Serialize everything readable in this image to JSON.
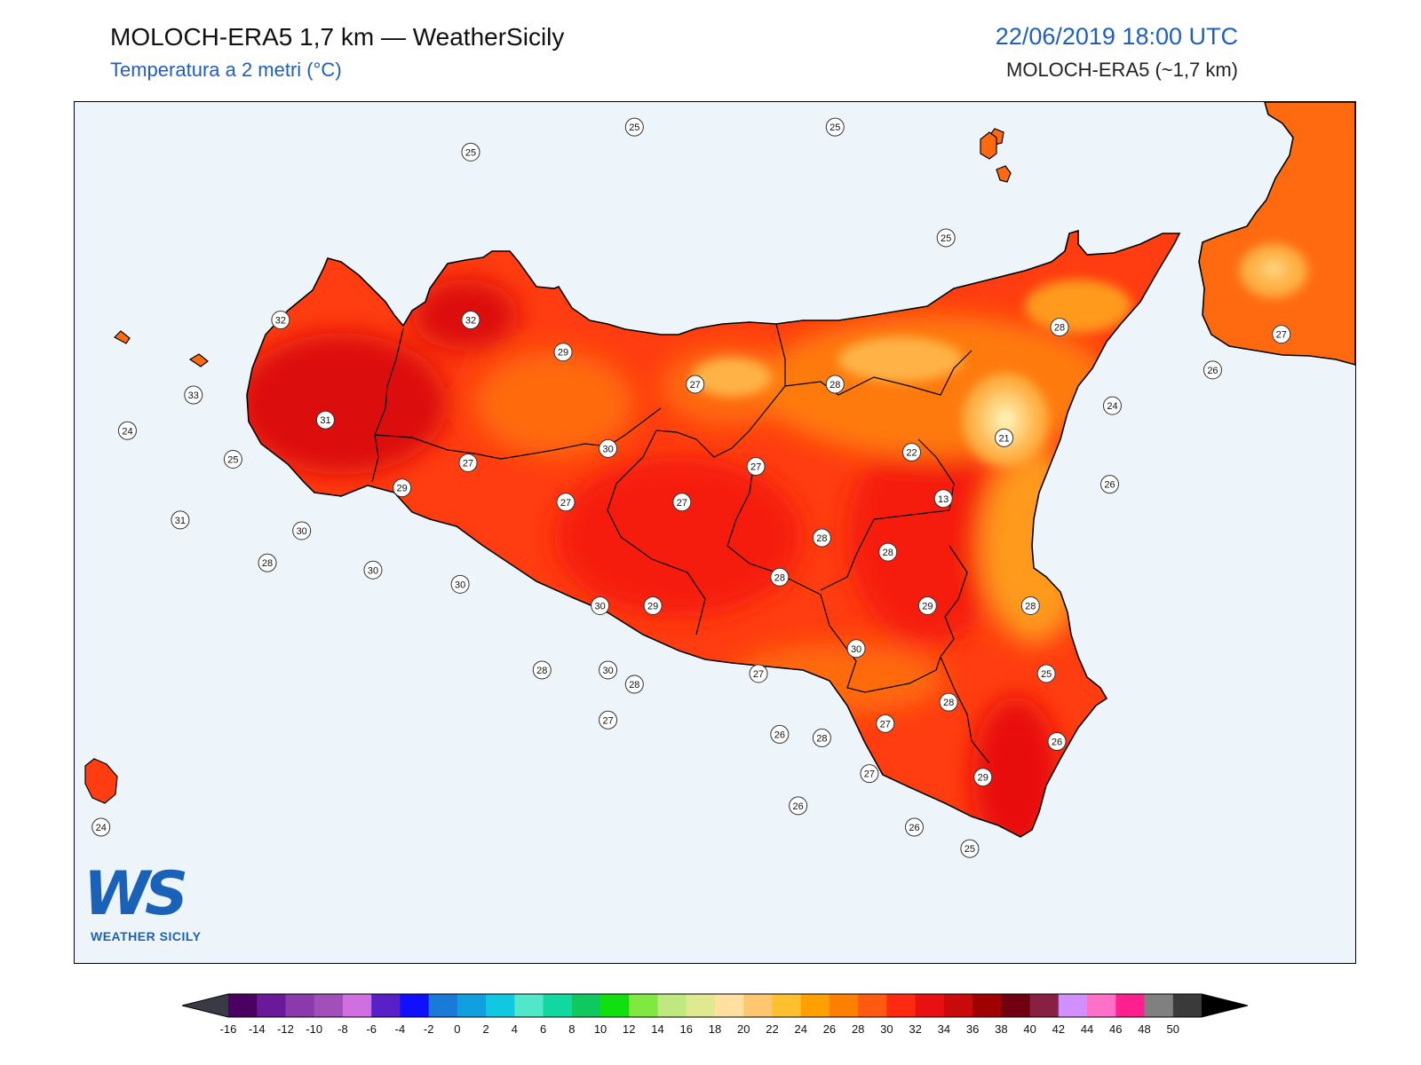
{
  "header": {
    "title": "MOLOCH-ERA5 1,7 km — WeatherSicily",
    "subtitle": "Temperatura a 2 metri (°C)",
    "datetime": "22/06/2019 18:00 UTC",
    "model": "MOLOCH-ERA5 (~1,7 km)"
  },
  "logo": {
    "mark": "WS",
    "text": "WEATHER SICILY"
  },
  "colors": {
    "sea": "#eef5fa",
    "t13": "#fff0b4",
    "t21": "#ffb347",
    "t24": "#ff9a1a",
    "t26": "#ff6a10",
    "t28": "#ff3d10",
    "t30": "#f51a0a",
    "t32": "#dc0d0a"
  },
  "stations": [
    {
      "v": "25",
      "lon": 13.2,
      "lat": 38.72
    },
    {
      "v": "25",
      "lon": 13.82,
      "lat": 38.79
    },
    {
      "v": "25",
      "lon": 14.58,
      "lat": 38.79
    },
    {
      "v": "25",
      "lon": 15.0,
      "lat": 38.48
    },
    {
      "v": "32",
      "lon": 12.48,
      "lat": 38.25
    },
    {
      "v": "32",
      "lon": 13.2,
      "lat": 38.25
    },
    {
      "v": "29",
      "lon": 13.55,
      "lat": 38.16
    },
    {
      "v": "27",
      "lon": 14.05,
      "lat": 38.07
    },
    {
      "v": "28",
      "lon": 14.58,
      "lat": 38.07
    },
    {
      "v": "28",
      "lon": 15.43,
      "lat": 38.23
    },
    {
      "v": "27",
      "lon": 16.27,
      "lat": 38.21
    },
    {
      "v": "26",
      "lon": 16.01,
      "lat": 38.11
    },
    {
      "v": "24",
      "lon": 15.63,
      "lat": 38.01
    },
    {
      "v": "21",
      "lon": 15.22,
      "lat": 37.92
    },
    {
      "v": "22",
      "lon": 14.87,
      "lat": 37.88
    },
    {
      "v": "27",
      "lon": 14.28,
      "lat": 37.84
    },
    {
      "v": "30",
      "lon": 13.72,
      "lat": 37.89
    },
    {
      "v": "27",
      "lon": 13.19,
      "lat": 37.85
    },
    {
      "v": "29",
      "lon": 12.94,
      "lat": 37.78
    },
    {
      "v": "33",
      "lon": 12.15,
      "lat": 38.04
    },
    {
      "v": "31",
      "lon": 12.65,
      "lat": 37.97
    },
    {
      "v": "24",
      "lon": 11.9,
      "lat": 37.94
    },
    {
      "v": "25",
      "lon": 12.3,
      "lat": 37.86
    },
    {
      "v": "31",
      "lon": 12.1,
      "lat": 37.69
    },
    {
      "v": "30",
      "lon": 12.56,
      "lat": 37.66
    },
    {
      "v": "27",
      "lon": 13.56,
      "lat": 37.74
    },
    {
      "v": "27",
      "lon": 14.0,
      "lat": 37.74
    },
    {
      "v": "26",
      "lon": 15.62,
      "lat": 37.79
    },
    {
      "v": "13",
      "lon": 14.99,
      "lat": 37.75
    },
    {
      "v": "28",
      "lon": 14.53,
      "lat": 37.64
    },
    {
      "v": "28",
      "lon": 14.78,
      "lat": 37.6
    },
    {
      "v": "28",
      "lon": 12.43,
      "lat": 37.57
    },
    {
      "v": "30",
      "lon": 12.83,
      "lat": 37.55
    },
    {
      "v": "30",
      "lon": 13.16,
      "lat": 37.51
    },
    {
      "v": "28",
      "lon": 14.37,
      "lat": 37.53
    },
    {
      "v": "30",
      "lon": 13.69,
      "lat": 37.45
    },
    {
      "v": "29",
      "lon": 13.89,
      "lat": 37.45
    },
    {
      "v": "29",
      "lon": 14.93,
      "lat": 37.45
    },
    {
      "v": "28",
      "lon": 15.32,
      "lat": 37.45
    },
    {
      "v": "30",
      "lon": 14.66,
      "lat": 37.33
    },
    {
      "v": "28",
      "lon": 13.47,
      "lat": 37.27
    },
    {
      "v": "30",
      "lon": 13.72,
      "lat": 37.27
    },
    {
      "v": "27",
      "lon": 14.29,
      "lat": 37.26
    },
    {
      "v": "25",
      "lon": 15.38,
      "lat": 37.26
    },
    {
      "v": "28",
      "lon": 13.82,
      "lat": 37.23
    },
    {
      "v": "28",
      "lon": 15.01,
      "lat": 37.18
    },
    {
      "v": "27",
      "lon": 14.77,
      "lat": 37.12
    },
    {
      "v": "27",
      "lon": 13.72,
      "lat": 37.13
    },
    {
      "v": "26",
      "lon": 14.37,
      "lat": 37.09
    },
    {
      "v": "28",
      "lon": 14.53,
      "lat": 37.08
    },
    {
      "v": "26",
      "lon": 15.42,
      "lat": 37.07
    },
    {
      "v": "27",
      "lon": 14.71,
      "lat": 36.98
    },
    {
      "v": "29",
      "lon": 15.14,
      "lat": 36.97
    },
    {
      "v": "26",
      "lon": 14.44,
      "lat": 36.89
    },
    {
      "v": "26",
      "lon": 14.88,
      "lat": 36.83
    },
    {
      "v": "25",
      "lon": 15.09,
      "lat": 36.77
    },
    {
      "v": "24",
      "lon": 11.8,
      "lat": 36.83
    }
  ],
  "colorbar": {
    "ticks": [
      "-16",
      "-14",
      "-12",
      "-10",
      "-8",
      "-6",
      "-4",
      "-2",
      "0",
      "2",
      "4",
      "6",
      "8",
      "10",
      "12",
      "14",
      "16",
      "18",
      "20",
      "22",
      "24",
      "26",
      "28",
      "30",
      "32",
      "34",
      "36",
      "38",
      "40",
      "42",
      "44",
      "46",
      "48",
      "50"
    ],
    "colors": [
      "#3a3a46",
      "#4a0060",
      "#6a1a98",
      "#8a3aaa",
      "#a050b8",
      "#d070e0",
      "#5a20c8",
      "#1010ff",
      "#1a7ad8",
      "#10a0e0",
      "#10c8e0",
      "#50e8c8",
      "#10d8a0",
      "#10c860",
      "#10e010",
      "#80e840",
      "#c0e880",
      "#e0e890",
      "#ffe0a0",
      "#ffc870",
      "#ffc030",
      "#ffa000",
      "#ff8000",
      "#ff5a10",
      "#ff2a10",
      "#e81010",
      "#c80a0a",
      "#a00000",
      "#700010",
      "#882044",
      "#d090ff",
      "#ff70c8",
      "#ff2090",
      "#808080",
      "#3a3a3a",
      "#000000"
    ]
  }
}
